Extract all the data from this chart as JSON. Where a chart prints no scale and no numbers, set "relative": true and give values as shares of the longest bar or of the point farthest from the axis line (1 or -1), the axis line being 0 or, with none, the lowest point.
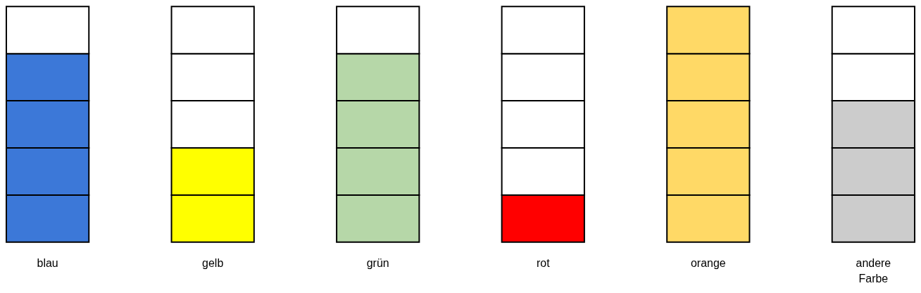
{
  "chart_data": {
    "type": "bar",
    "relative": true,
    "stacked": true,
    "categories": [
      "blau",
      "gelb",
      "grün",
      "rot",
      "orange",
      "andere Farbe"
    ],
    "series": [
      {
        "colors": [
          "#3c78d8",
          "#ffff00",
          "#b6d7a8",
          "#ff0000",
          "#ffd966",
          "#cccccc"
        ],
        "values": [
          0.2,
          0.2,
          0.2,
          0.2,
          0.2,
          0.2
        ]
      },
      {
        "colors": [
          "#3c78d8",
          "#ffff00",
          "#b6d7a8",
          "#ffffff",
          "#ffd966",
          "#cccccc"
        ],
        "values": [
          0.2,
          0.2,
          0.2,
          0.2,
          0.2,
          0.2
        ]
      },
      {
        "colors": [
          "#3c78d8",
          "#ffffff",
          "#b6d7a8",
          "#ffffff",
          "#ffd966",
          "#cccccc"
        ],
        "values": [
          0.2,
          0.2,
          0.2,
          0.2,
          0.2,
          0.2
        ]
      },
      {
        "colors": [
          "#3c78d8",
          "#ffffff",
          "#b6d7a8",
          "#ffffff",
          "#ffd966",
          "#ffffff"
        ],
        "values": [
          0.2,
          0.2,
          0.2,
          0.2,
          0.2,
          0.2
        ]
      },
      {
        "colors": [
          "#ffffff",
          "#ffffff",
          "#ffffff",
          "#ffffff",
          "#ffd966",
          "#ffffff"
        ],
        "values": [
          0.2,
          0.2,
          0.2,
          0.2,
          0.2,
          0.2
        ]
      }
    ],
    "legend": false
  }
}
